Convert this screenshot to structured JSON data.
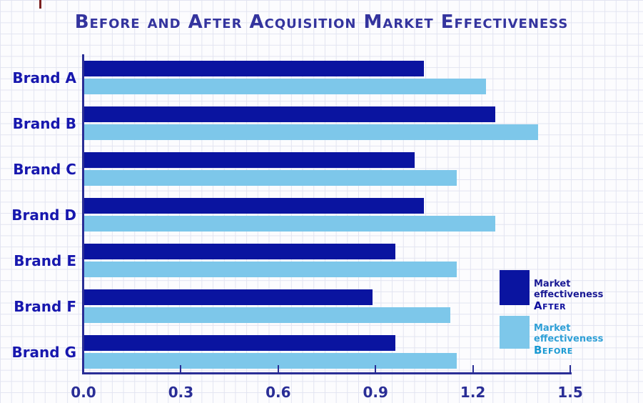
{
  "title": "Before and After Acquisition Market Effectiveness",
  "chart_data": {
    "type": "bar",
    "orientation": "horizontal",
    "title": "Before and After Acquisition Market Effectiveness",
    "categories": [
      "Brand A",
      "Brand B",
      "Brand C",
      "Brand D",
      "Brand E",
      "Brand F",
      "Brand G"
    ],
    "series": [
      {
        "name": "Market effectiveness After",
        "color": "#0A14A0",
        "values": [
          1.05,
          1.27,
          1.02,
          1.05,
          0.96,
          0.89,
          0.96
        ]
      },
      {
        "name": "Market effectiveness Before",
        "color": "#7DC7EA",
        "values": [
          1.24,
          1.4,
          1.15,
          1.27,
          1.15,
          1.13,
          1.15
        ]
      }
    ],
    "xlabel": "",
    "ylabel": "",
    "xlim": [
      0,
      1.5
    ],
    "x_ticks": [
      0.0,
      0.3,
      0.6,
      0.9,
      1.2,
      1.5
    ],
    "x_tick_labels": [
      "0.0",
      "0.3",
      "0.6",
      "0.9",
      "1.2",
      "1.5"
    ],
    "grid": "graph-paper background",
    "legend_position": "right-middle"
  },
  "legend": {
    "after": {
      "line1": "Market effectiveness",
      "line2": "After"
    },
    "before": {
      "line1": "Market effectiveness",
      "line2": "Before"
    }
  },
  "colors": {
    "bar_after": "#0A14A0",
    "bar_before": "#7DC7EA",
    "title_text": "#34349E",
    "category_label": "#1717AE",
    "axis": "#2A2E96",
    "tick_label": "#2A2E96",
    "legend_after_text": "#1A1A94",
    "legend_before_text": "#2E9FD6",
    "grid_line": "#E2E4F1",
    "margin_mark": "#7B2121"
  }
}
